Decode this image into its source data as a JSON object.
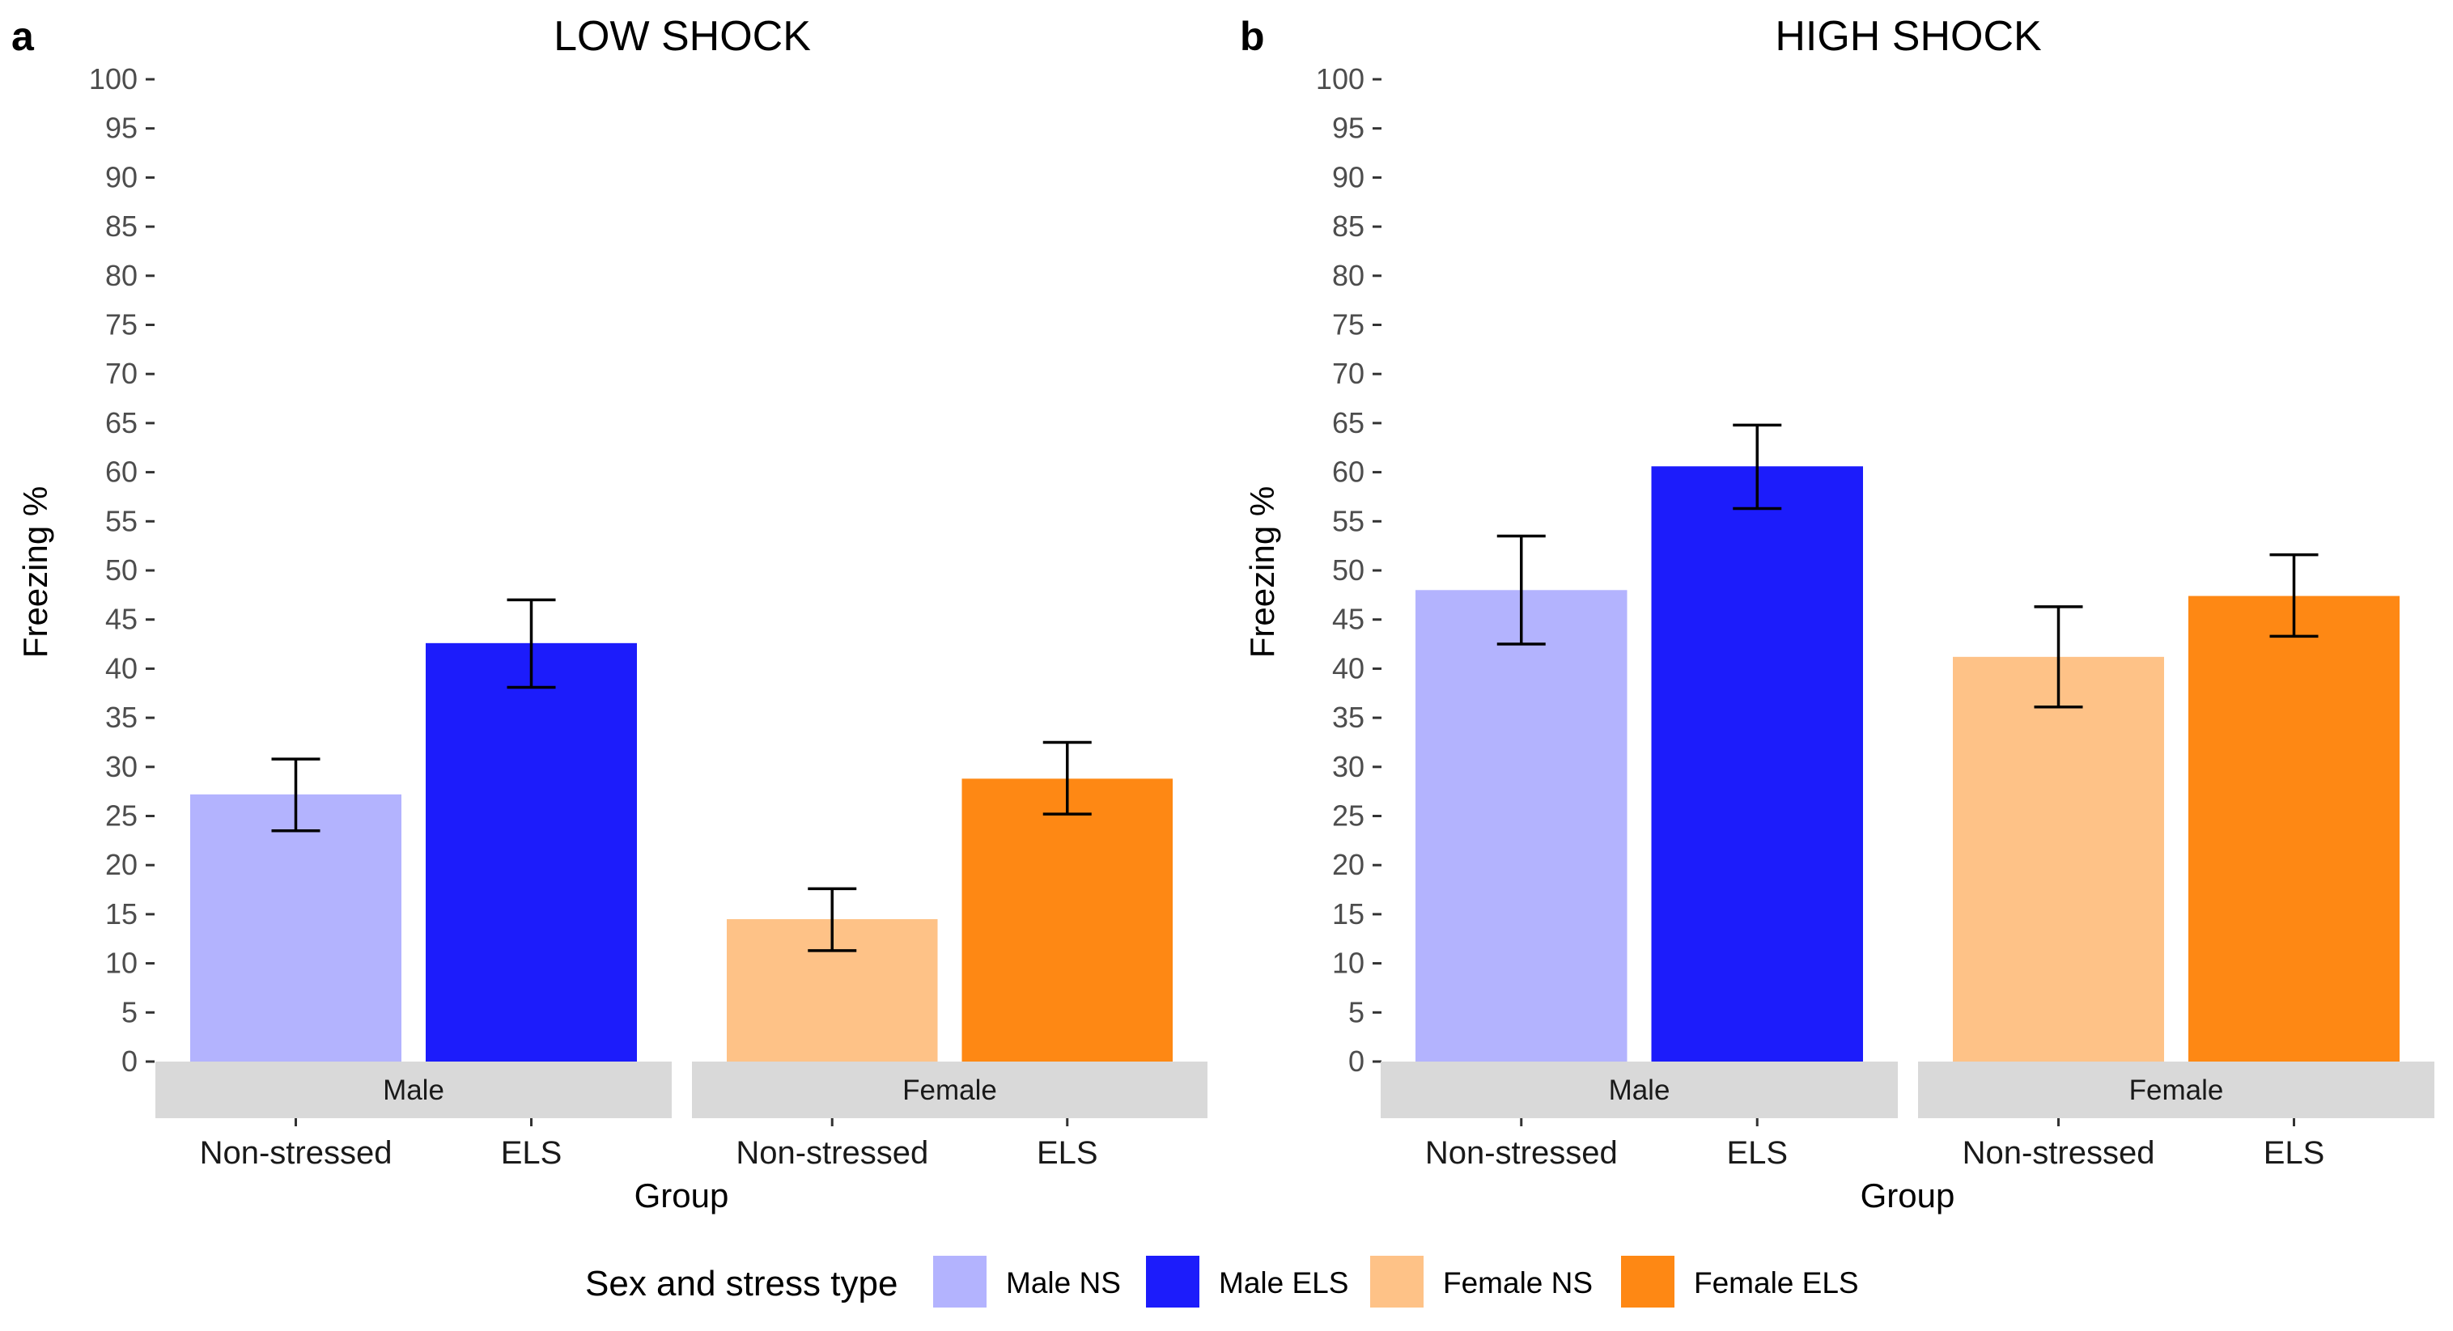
{
  "chart_data": [
    {
      "type": "bar",
      "panel_letter": "a",
      "title": "LOW SHOCK",
      "xlabel": "Group",
      "ylabel": "Freezing %",
      "ylim": [
        0,
        100
      ],
      "y_ticks": [
        0,
        5,
        10,
        15,
        20,
        25,
        30,
        35,
        40,
        45,
        50,
        55,
        60,
        65,
        70,
        75,
        80,
        85,
        90,
        95,
        100
      ],
      "grid": false,
      "facets": [
        {
          "label": "Male",
          "categories": [
            "Non-stressed",
            "ELS"
          ],
          "bars": [
            {
              "series": "Male NS",
              "value": 27.2,
              "error_low": 23.5,
              "error_high": 30.8
            },
            {
              "series": "Male ELS",
              "value": 42.6,
              "error_low": 38.1,
              "error_high": 47.0
            }
          ]
        },
        {
          "label": "Female",
          "categories": [
            "Non-stressed",
            "ELS"
          ],
          "bars": [
            {
              "series": "Female NS",
              "value": 14.5,
              "error_low": 11.3,
              "error_high": 17.6
            },
            {
              "series": "Female ELS",
              "value": 28.8,
              "error_low": 25.2,
              "error_high": 32.5
            }
          ]
        }
      ]
    },
    {
      "type": "bar",
      "panel_letter": "b",
      "title": "HIGH SHOCK",
      "xlabel": "Group",
      "ylabel": "Freezing %",
      "ylim": [
        0,
        100
      ],
      "y_ticks": [
        0,
        5,
        10,
        15,
        20,
        25,
        30,
        35,
        40,
        45,
        50,
        55,
        60,
        65,
        70,
        75,
        80,
        85,
        90,
        95,
        100
      ],
      "grid": false,
      "facets": [
        {
          "label": "Male",
          "categories": [
            "Non-stressed",
            "ELS"
          ],
          "bars": [
            {
              "series": "Male NS",
              "value": 48.0,
              "error_low": 42.5,
              "error_high": 53.5
            },
            {
              "series": "Male ELS",
              "value": 60.6,
              "error_low": 56.3,
              "error_high": 64.8
            }
          ]
        },
        {
          "label": "Female",
          "categories": [
            "Non-stressed",
            "ELS"
          ],
          "bars": [
            {
              "series": "Female NS",
              "value": 41.2,
              "error_low": 36.1,
              "error_high": 46.3
            },
            {
              "series": "Female ELS",
              "value": 47.4,
              "error_low": 43.3,
              "error_high": 51.6
            }
          ]
        }
      ]
    }
  ],
  "legend": {
    "title": "Sex and stress type",
    "placement": "bottom",
    "entries": [
      {
        "label": "Male NS",
        "color": "#b3b3fe"
      },
      {
        "label": "Male ELS",
        "color": "#1c1cfb"
      },
      {
        "label": "Female NS",
        "color": "#fec287"
      },
      {
        "label": "Female ELS",
        "color": "#fe8814"
      }
    ]
  },
  "colors": {
    "strip_background": "#d9d9d9",
    "axis": "#333333",
    "error_bar": "#000000"
  }
}
